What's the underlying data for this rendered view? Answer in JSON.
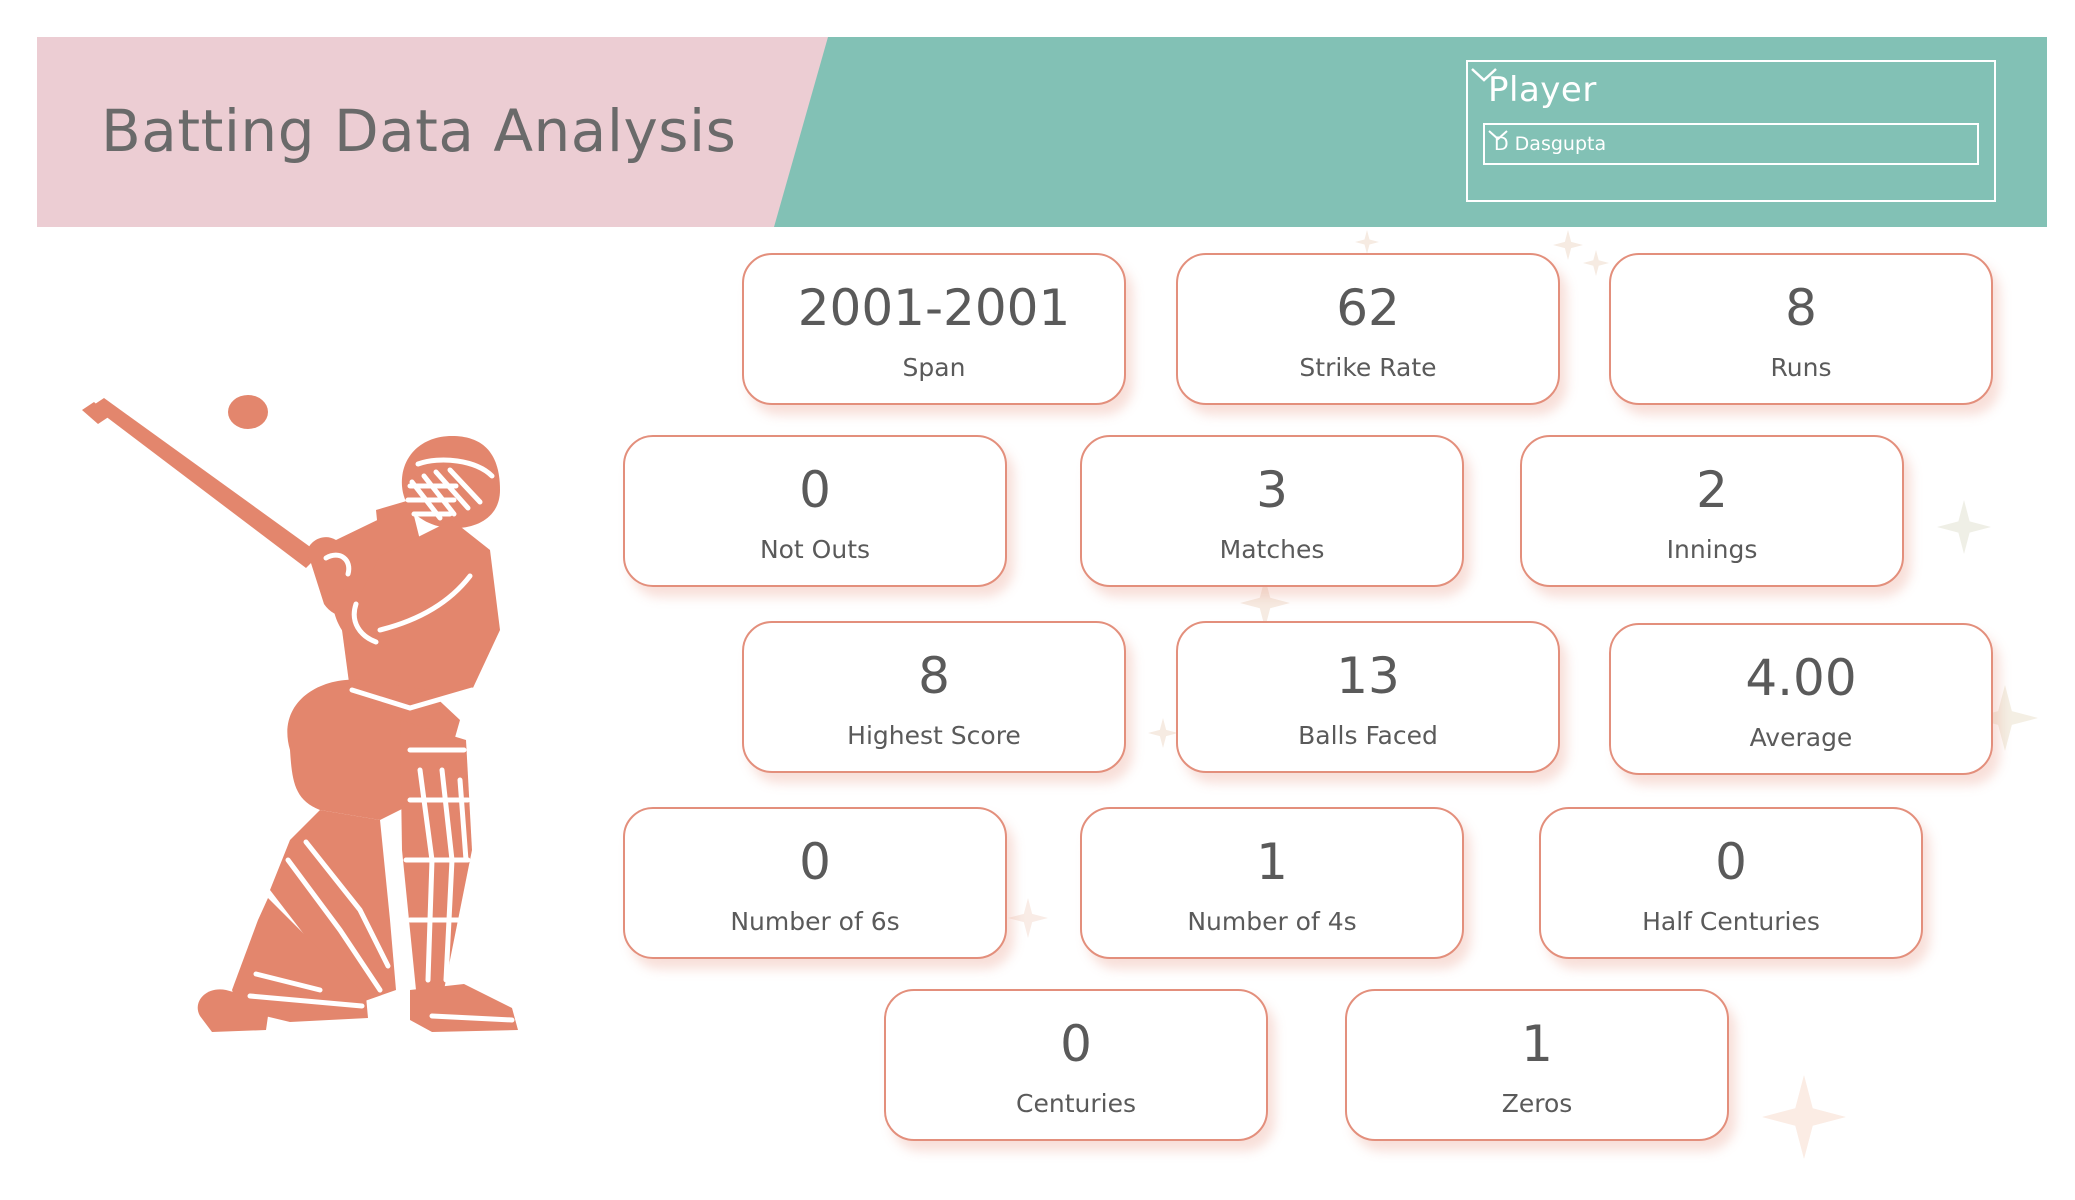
{
  "header": {
    "title": "Batting Data Analysis"
  },
  "slicer": {
    "title": "Player",
    "selected": "D Dasgupta"
  },
  "cards": [
    {
      "id": "span",
      "value": "2001-2001",
      "label": "Span"
    },
    {
      "id": "strike-rate",
      "value": "62",
      "label": "Strike Rate"
    },
    {
      "id": "runs",
      "value": "8",
      "label": "Runs"
    },
    {
      "id": "not-outs",
      "value": "0",
      "label": "Not Outs"
    },
    {
      "id": "matches",
      "value": "3",
      "label": "Matches"
    },
    {
      "id": "innings",
      "value": "2",
      "label": "Innings"
    },
    {
      "id": "highest-score",
      "value": "8",
      "label": "Highest Score"
    },
    {
      "id": "balls-faced",
      "value": "13",
      "label": "Balls Faced"
    },
    {
      "id": "average",
      "value": "4.00",
      "label": "Average"
    },
    {
      "id": "sixes",
      "value": "0",
      "label": "Number of 6s"
    },
    {
      "id": "fours",
      "value": "1",
      "label": "Number of 4s"
    },
    {
      "id": "half-centuries",
      "value": "0",
      "label": "Half Centuries"
    },
    {
      "id": "centuries",
      "value": "0",
      "label": "Centuries"
    },
    {
      "id": "zeros",
      "value": "1",
      "label": "Zeros"
    }
  ],
  "colors": {
    "header_pink": "#eccdd3",
    "header_teal": "#82c1b5",
    "accent_coral": "#e3866d",
    "card_border": "#e38f7c",
    "text_grey": "#5a5a5a"
  },
  "icons": {
    "batsman": "cricket-batsman-illustration",
    "ball": "cricket-ball-icon",
    "sparkle": "sparkle-icon"
  }
}
